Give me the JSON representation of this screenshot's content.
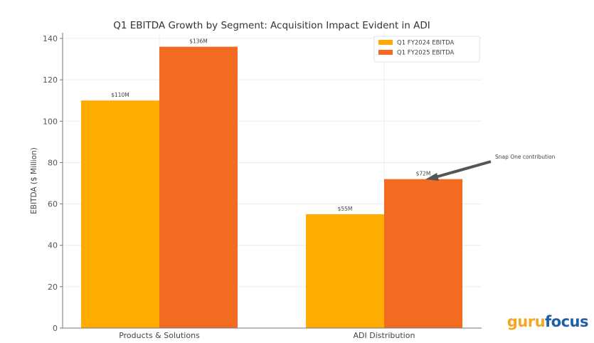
{
  "chart_data": {
    "type": "bar",
    "title": "Q1 EBITDA Growth by Segment: Acquisition Impact Evident in ADI",
    "xlabel": "",
    "ylabel": "EBITDA ($ Million)",
    "categories": [
      "Products & Solutions",
      "ADI Distribution"
    ],
    "series": [
      {
        "name": "Q1 FY2024 EBITDA",
        "values": [
          110,
          55
        ],
        "labels": [
          "$110M",
          "$55M"
        ],
        "color": "#ffab00"
      },
      {
        "name": "Q1 FY2025 EBITDA",
        "values": [
          136,
          72
        ],
        "labels": [
          "$136M",
          "$72M"
        ],
        "color": "#f26b21"
      }
    ],
    "ylim": [
      0,
      140
    ],
    "yticks": [
      0,
      20,
      40,
      60,
      80,
      100,
      120,
      140
    ],
    "grid": true,
    "legend": "top-right",
    "annotation": {
      "text": "Snap One contribution",
      "target_category": "ADI Distribution",
      "target_series": "Q1 FY2025 EBITDA",
      "target_value": 72
    }
  },
  "watermark": {
    "part1": "guru",
    "part2": "focus"
  }
}
